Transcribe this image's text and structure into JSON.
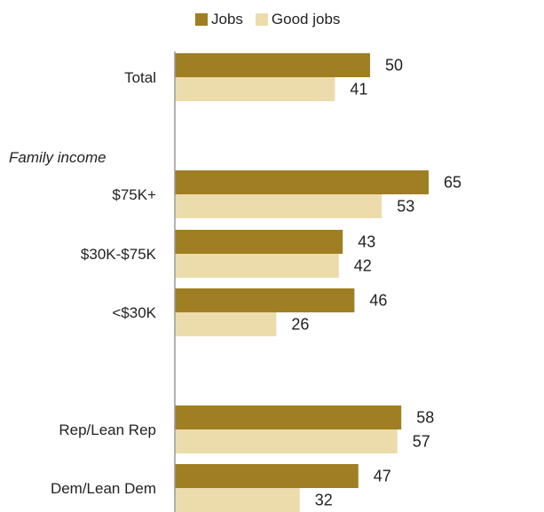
{
  "chart_data": {
    "type": "bar",
    "orientation": "horizontal",
    "title": "",
    "xlabel": "",
    "ylabel": "",
    "xlim": [
      0,
      100
    ],
    "grid": false,
    "legend_position": "top",
    "colors": {
      "Jobs": "#a07e23",
      "Good jobs": "#eddcab"
    },
    "series": [
      {
        "name": "Jobs",
        "values": [
          50,
          65,
          43,
          46,
          58,
          47
        ]
      },
      {
        "name": "Good jobs",
        "values": [
          41,
          53,
          42,
          26,
          57,
          32
        ]
      }
    ],
    "categories": [
      "Total",
      "$75K+",
      "$30K-$75K",
      "<$30K",
      "Rep/Lean Rep",
      "Dem/Lean Dem"
    ],
    "group_labels": [
      {
        "label": "Family income",
        "before_category": 1
      }
    ]
  }
}
